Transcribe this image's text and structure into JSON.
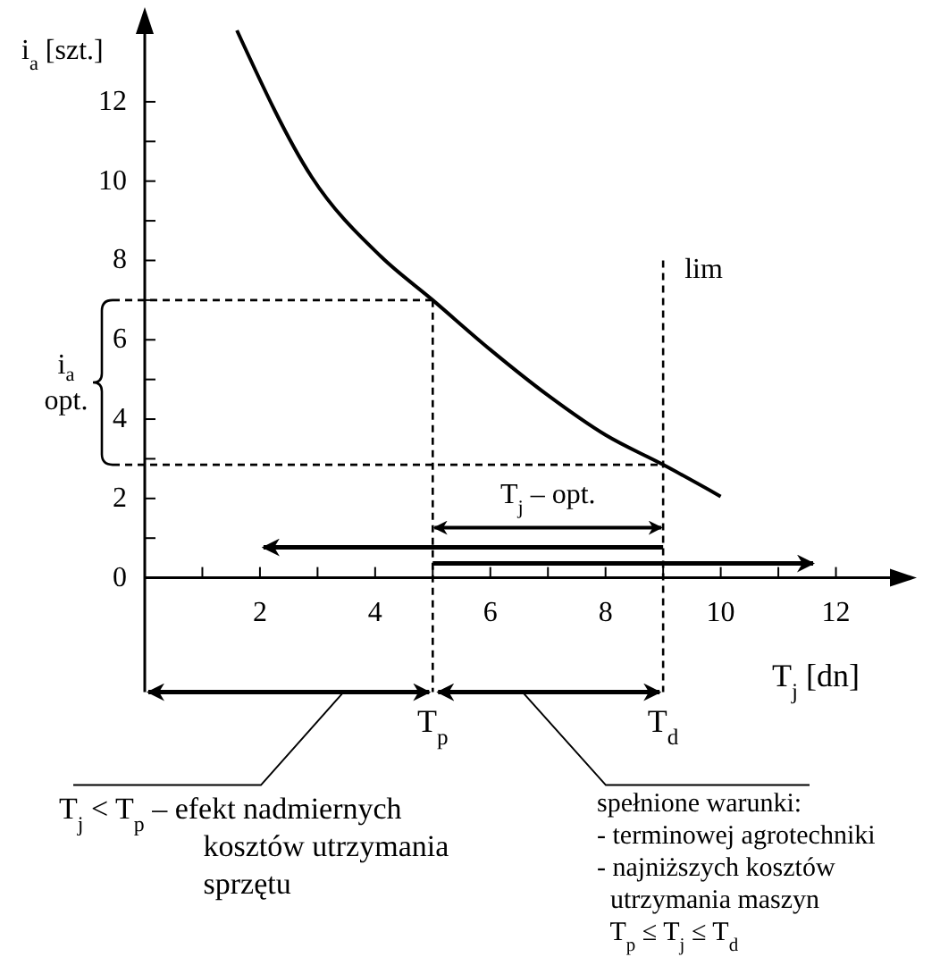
{
  "chart_data": {
    "type": "line",
    "xlabel": "T$_{j}$ [dn]",
    "ylabel": "i$_{a}$ [szt.]",
    "xlim": [
      0,
      13
    ],
    "ylim": [
      0,
      13.8
    ],
    "xticks": [
      {
        "value": 1,
        "label": null
      },
      2,
      {
        "value": 3,
        "label": null
      },
      4,
      {
        "value": 5,
        "label": null
      },
      6,
      {
        "value": 7,
        "label": null
      },
      8,
      {
        "value": 9,
        "label": null
      },
      10,
      {
        "value": 11,
        "label": null
      },
      12
    ],
    "yticks": [
      0,
      {
        "value": 1,
        "label": null
      },
      2,
      {
        "value": 3,
        "label": null
      },
      4,
      {
        "value": 5,
        "label": null
      },
      6,
      {
        "value": 7,
        "label": null
      },
      8,
      {
        "value": 9,
        "label": null
      },
      10,
      {
        "value": 11,
        "label": null
      },
      12
    ],
    "series": [
      {
        "color": "#000000",
        "x": [
          1.6,
          2.9,
          4.1,
          5,
          6,
          7,
          8,
          9,
          10
        ],
        "values": [
          13.8,
          10.1,
          8.1,
          7,
          5.75,
          4.6,
          3.6,
          2.85,
          2.05
        ]
      }
    ],
    "ref_lines": [
      {
        "axis": "x",
        "value": 5,
        "label": "T$_{p}$",
        "line_style": "dashed"
      },
      {
        "axis": "x",
        "value": 9,
        "label": "T$_{d}$",
        "line_style": "dashed"
      },
      {
        "axis": "y",
        "value": 7,
        "line_style": "dashed"
      },
      {
        "axis": "y",
        "value": 2.85,
        "line_style": "dashed"
      }
    ],
    "annotations": [
      {
        "text": "lim",
        "x": 9,
        "y": 8
      },
      "i$_{a}$\nopt.",
      "T$_{j}$ – opt.",
      "T$_{j}$ < T$_{p}$ – efekt nadmiernych\n                   kosztów utrzymania\n                   sprzętu",
      "spełnione warunki:\n- terminowej agrotechniki\n- najniższych kosztów\n  utrzymania maszyn\n  T$_{p}$ ≤ T$_{j}$ ≤ T$_{d}$"
    ]
  }
}
